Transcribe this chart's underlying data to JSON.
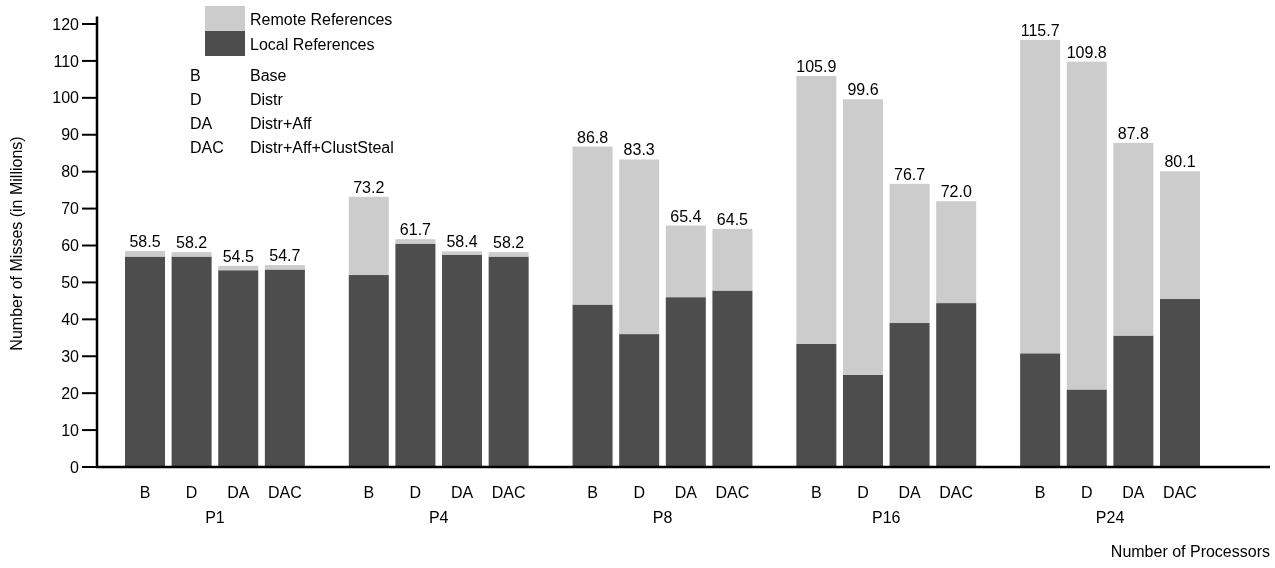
{
  "chart_data": {
    "type": "bar",
    "stacked": true,
    "categories": [
      "B",
      "D",
      "DA",
      "DAC",
      "B",
      "D",
      "DA",
      "DAC",
      "B",
      "D",
      "DA",
      "DAC",
      "B",
      "D",
      "DA",
      "DAC",
      "B",
      "D",
      "DA",
      "DAC"
    ],
    "series": [
      {
        "name": "Local References",
        "color": "#4d4d4d",
        "values": [
          57,
          57,
          53.3,
          53.5,
          52,
          60.5,
          57.5,
          57,
          44,
          36,
          46,
          47.8,
          33.4,
          25,
          39,
          44.4,
          30.8,
          21,
          35.6,
          45.5
        ]
      },
      {
        "name": "Remote References",
        "color": "#cccccc",
        "values": [
          1.5,
          1.2,
          1.2,
          1.2,
          21.2,
          1.2,
          0.9,
          1.2,
          42.8,
          47.3,
          19.4,
          16.7,
          72.5,
          74.6,
          37.7,
          27.6,
          84.9,
          88.8,
          52.2,
          34.6
        ]
      }
    ],
    "totals": [
      "58.5",
      "58.2",
      "54.5",
      "54.7",
      "73.2",
      "61.7",
      "58.4",
      "58.2",
      "86.8",
      "83.3",
      "65.4",
      "64.5",
      "105.9",
      "99.6",
      "76.7",
      "72.0",
      "115.7",
      "109.8",
      "87.8",
      "80.1"
    ],
    "ylabel": "Number of Misses (in Millions)",
    "xlabel": "Number of Processors",
    "ylim": [
      0,
      122
    ],
    "yticks": [
      0,
      10,
      20,
      30,
      40,
      50,
      60,
      70,
      80,
      90,
      100,
      110,
      120
    ],
    "legend": "top left",
    "grid": false,
    "annotations": [
      "P1",
      "P4",
      "P8",
      "P16",
      "P24",
      "B Base",
      "D Distr",
      "DA Distr+Aff",
      "DAC Distr+Aff+ClustSteal"
    ]
  }
}
